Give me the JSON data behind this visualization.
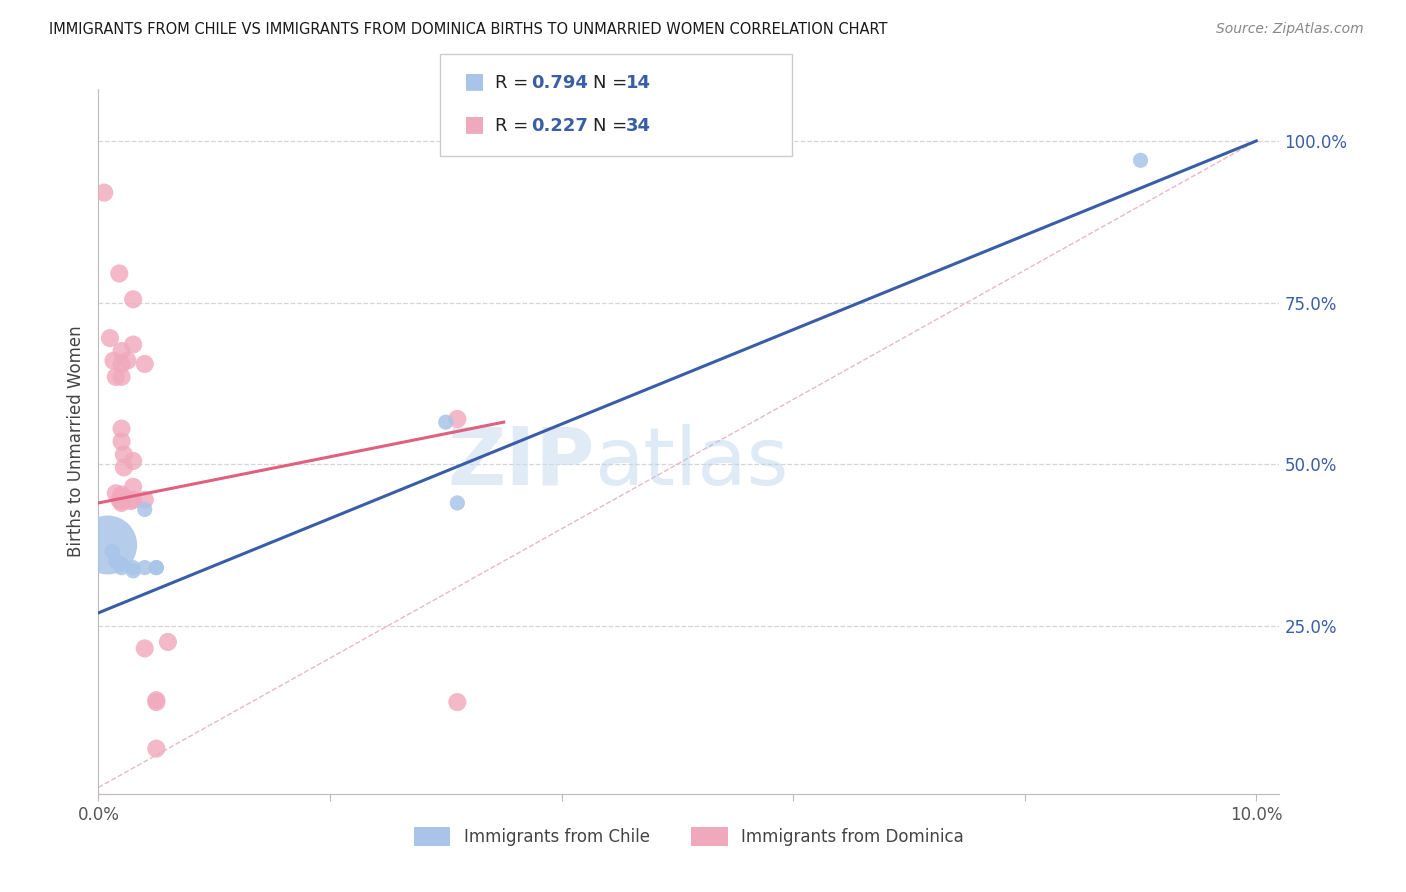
{
  "title": "IMMIGRANTS FROM CHILE VS IMMIGRANTS FROM DOMINICA BIRTHS TO UNMARRIED WOMEN CORRELATION CHART",
  "source": "Source: ZipAtlas.com",
  "ylabel": "Births to Unmarried Women",
  "chile_color": "#a8c4e8",
  "dominica_color": "#f0a8bc",
  "chile_line_color": "#3a5da8",
  "dominica_line_color": "#e06080",
  "diagonal_color": "#e8b0c0",
  "accent_color": "#3a5da8",
  "watermark_zip": "ZIP",
  "watermark_atlas": "atlas",
  "legend_R_chile": "0.794",
  "legend_N_chile": "14",
  "legend_R_dom": "0.227",
  "legend_N_dom": "34",
  "chile_points": [
    [
      0.0008,
      0.375
    ],
    [
      0.0012,
      0.365
    ],
    [
      0.0015,
      0.35
    ],
    [
      0.002,
      0.345
    ],
    [
      0.002,
      0.34
    ],
    [
      0.003,
      0.34
    ],
    [
      0.003,
      0.335
    ],
    [
      0.004,
      0.43
    ],
    [
      0.004,
      0.34
    ],
    [
      0.005,
      0.34
    ],
    [
      0.005,
      0.34
    ],
    [
      0.03,
      0.565
    ],
    [
      0.031,
      0.44
    ],
    [
      0.09,
      0.97
    ]
  ],
  "chile_sizes": [
    120,
    120,
    120,
    120,
    120,
    120,
    120,
    120,
    120,
    120,
    120,
    120,
    120,
    120
  ],
  "chile_large_idx": 0,
  "chile_large_size": 1800,
  "dominica_points": [
    [
      0.0005,
      0.92
    ],
    [
      0.001,
      0.695
    ],
    [
      0.0013,
      0.66
    ],
    [
      0.0015,
      0.635
    ],
    [
      0.0018,
      0.795
    ],
    [
      0.002,
      0.675
    ],
    [
      0.002,
      0.655
    ],
    [
      0.002,
      0.635
    ],
    [
      0.002,
      0.555
    ],
    [
      0.002,
      0.535
    ],
    [
      0.0022,
      0.515
    ],
    [
      0.0022,
      0.495
    ],
    [
      0.0015,
      0.455
    ],
    [
      0.002,
      0.453
    ],
    [
      0.002,
      0.45
    ],
    [
      0.0018,
      0.445
    ],
    [
      0.002,
      0.443
    ],
    [
      0.002,
      0.44
    ],
    [
      0.003,
      0.755
    ],
    [
      0.003,
      0.685
    ],
    [
      0.0025,
      0.66
    ],
    [
      0.003,
      0.505
    ],
    [
      0.003,
      0.465
    ],
    [
      0.003,
      0.445
    ],
    [
      0.0028,
      0.443
    ],
    [
      0.004,
      0.655
    ],
    [
      0.004,
      0.445
    ],
    [
      0.004,
      0.215
    ],
    [
      0.005,
      0.135
    ],
    [
      0.005,
      0.132
    ],
    [
      0.005,
      0.06
    ],
    [
      0.006,
      0.225
    ],
    [
      0.031,
      0.57
    ],
    [
      0.031,
      0.132
    ]
  ],
  "chile_line": {
    "x0": 0.0,
    "y0": 0.27,
    "x1": 0.1,
    "y1": 1.0
  },
  "dom_line": {
    "x0": 0.0,
    "y0": 0.44,
    "x1": 0.035,
    "y1": 0.565
  },
  "diag_line": {
    "x0": 0.0,
    "y0": 0.0,
    "x1": 0.1,
    "y1": 1.0
  },
  "xlim": [
    0.0,
    0.102
  ],
  "ylim": [
    -0.01,
    1.08
  ],
  "x_ticks": [
    0.0,
    0.02,
    0.04,
    0.06,
    0.08,
    0.1
  ],
  "x_tick_labels": [
    "0.0%",
    "",
    "",
    "",
    "",
    "10.0%"
  ],
  "y_ticks_right": [
    0.25,
    0.5,
    0.75,
    1.0
  ],
  "y_tick_labels_right": [
    "25.0%",
    "50.0%",
    "75.0%",
    "100.0%"
  ],
  "grid_lines": [
    0.25,
    0.5,
    0.75,
    1.0
  ]
}
